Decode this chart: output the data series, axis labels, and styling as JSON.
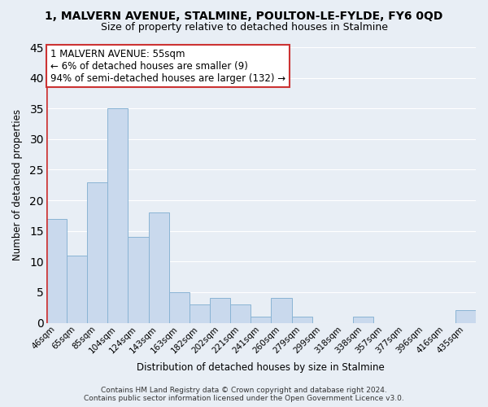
{
  "title": "1, MALVERN AVENUE, STALMINE, POULTON-LE-FYLDE, FY6 0QD",
  "subtitle": "Size of property relative to detached houses in Stalmine",
  "xlabel": "Distribution of detached houses by size in Stalmine",
  "ylabel": "Number of detached properties",
  "bar_labels": [
    "46sqm",
    "65sqm",
    "85sqm",
    "104sqm",
    "124sqm",
    "143sqm",
    "163sqm",
    "182sqm",
    "202sqm",
    "221sqm",
    "241sqm",
    "260sqm",
    "279sqm",
    "299sqm",
    "318sqm",
    "338sqm",
    "357sqm",
    "377sqm",
    "396sqm",
    "416sqm",
    "435sqm"
  ],
  "bar_values": [
    17,
    11,
    23,
    35,
    14,
    18,
    5,
    3,
    4,
    3,
    1,
    4,
    1,
    0,
    0,
    1,
    0,
    0,
    0,
    0,
    2
  ],
  "bar_color": "#c9d9ed",
  "bar_edge_color": "#8ab4d4",
  "highlight_color": "#cc3333",
  "ylim": [
    0,
    45
  ],
  "yticks": [
    0,
    5,
    10,
    15,
    20,
    25,
    30,
    35,
    40,
    45
  ],
  "annotation_title": "1 MALVERN AVENUE: 55sqm",
  "annotation_line1": "← 6% of detached houses are smaller (9)",
  "annotation_line2": "94% of semi-detached houses are larger (132) →",
  "annotation_box_color": "#ffffff",
  "annotation_box_edge": "#cc3333",
  "footer1": "Contains HM Land Registry data © Crown copyright and database right 2024.",
  "footer2": "Contains public sector information licensed under the Open Government Licence v3.0.",
  "background_color": "#e8eef5",
  "grid_color": "#ffffff",
  "title_fontsize": 10,
  "subtitle_fontsize": 9,
  "axis_label_fontsize": 8.5,
  "tick_fontsize": 7.5,
  "footer_fontsize": 6.5
}
